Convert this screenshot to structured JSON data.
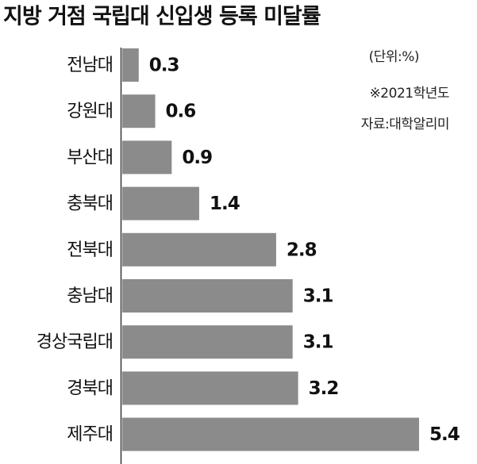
{
  "chart_data": {
    "type": "bar",
    "orientation": "horizontal",
    "title": "지방 거점 국립대 신입생 등록 미달률",
    "unit": "(단위:%)",
    "note": "※2021학년도",
    "source": "자료:대학알리미",
    "categories": [
      "전남대",
      "강원대",
      "부산대",
      "충북대",
      "전북대",
      "충남대",
      "경상국립대",
      "경북대",
      "제주대"
    ],
    "values": [
      0.3,
      0.6,
      0.9,
      1.4,
      2.8,
      3.1,
      3.1,
      3.2,
      5.4
    ],
    "color": "#8b8b8b"
  }
}
